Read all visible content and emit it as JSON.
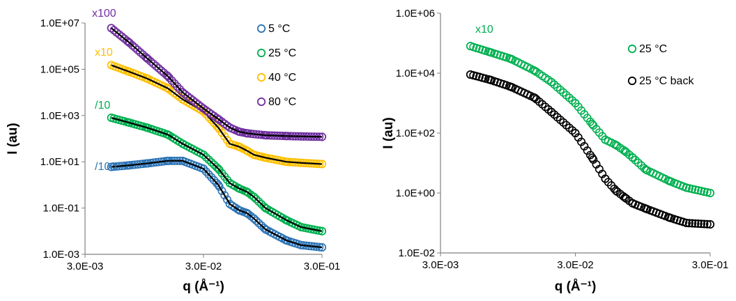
{
  "chart_data": [
    {
      "type": "scatter",
      "xlabel": "q (Å⁻¹)",
      "ylabel": "I (au)",
      "x_scale": "log",
      "y_scale": "log",
      "xlim": [
        0.003,
        0.3
      ],
      "ylim": [
        0.001,
        10000000
      ],
      "x_tick_labels": [
        "3.0E-03",
        "3.0E-02",
        "3.0E-01"
      ],
      "y_tick_labels": [
        "1.0E-03",
        "1.0E-01",
        "1.0E+01",
        "1.0E+03",
        "1.0E+05",
        "1.0E+07"
      ],
      "legend_position": "top-right",
      "series": [
        {
          "name": "5 °C",
          "color": "#2e75b6",
          "annotation": "/100",
          "x": [
            0.005,
            0.007,
            0.01,
            0.015,
            0.02,
            0.03,
            0.04,
            0.05,
            0.06,
            0.07,
            0.08,
            0.1,
            0.15,
            0.2,
            0.3
          ],
          "y": [
            6,
            7,
            8.5,
            11,
            11,
            5,
            1.0,
            0.15,
            0.08,
            0.06,
            0.035,
            0.012,
            0.004,
            0.0025,
            0.002
          ]
        },
        {
          "name": "25 °C",
          "color": "#00b050",
          "annotation": "/10",
          "x": [
            0.005,
            0.007,
            0.01,
            0.015,
            0.02,
            0.03,
            0.04,
            0.05,
            0.06,
            0.07,
            0.08,
            0.1,
            0.15,
            0.2,
            0.3
          ],
          "y": [
            800,
            500,
            300,
            150,
            60,
            20,
            5,
            1.2,
            0.7,
            0.5,
            0.3,
            0.1,
            0.03,
            0.015,
            0.01
          ]
        },
        {
          "name": "40 °C",
          "color": "#ffc000",
          "annotation": "x10",
          "x": [
            0.005,
            0.007,
            0.01,
            0.015,
            0.02,
            0.03,
            0.04,
            0.05,
            0.06,
            0.07,
            0.08,
            0.1,
            0.15,
            0.2,
            0.3
          ],
          "y": [
            150000,
            80000,
            40000,
            15000,
            5000,
            1500,
            300,
            60,
            45,
            30,
            20,
            15,
            10,
            9,
            8
          ]
        },
        {
          "name": "80 °C",
          "color": "#7030a0",
          "annotation": "x100",
          "x": [
            0.005,
            0.007,
            0.01,
            0.015,
            0.02,
            0.03,
            0.04,
            0.05,
            0.06,
            0.07,
            0.1,
            0.15,
            0.2,
            0.3
          ],
          "y": [
            6000000,
            1500000,
            300000,
            50000,
            10000,
            2000,
            700,
            300,
            200,
            170,
            140,
            130,
            125,
            120
          ]
        }
      ]
    },
    {
      "type": "scatter",
      "xlabel": "q (Å⁻¹)",
      "ylabel": "I (au)",
      "x_scale": "log",
      "y_scale": "log",
      "xlim": [
        0.003,
        0.3
      ],
      "ylim": [
        0.01,
        1000000
      ],
      "x_tick_labels": [
        "3.0E-03",
        "3.0E-02",
        "3.0E-01"
      ],
      "y_tick_labels": [
        "1.0E-02",
        "1.0E+00",
        "1.0E+02",
        "1.0E+04",
        "1.0E+06"
      ],
      "legend_position": "top-right",
      "series": [
        {
          "name": "25 °C",
          "color": "#00b050",
          "annotation": "x10",
          "x": [
            0.005,
            0.007,
            0.01,
            0.015,
            0.02,
            0.03,
            0.04,
            0.05,
            0.06,
            0.07,
            0.08,
            0.1,
            0.15,
            0.2,
            0.3
          ],
          "y": [
            80000,
            50000,
            30000,
            12000,
            5000,
            1000,
            200,
            60,
            40,
            25,
            15,
            6,
            2.5,
            1.5,
            1.0
          ]
        },
        {
          "name": "25 °C back",
          "color": "#000000",
          "annotation": "",
          "x": [
            0.005,
            0.007,
            0.01,
            0.015,
            0.02,
            0.03,
            0.04,
            0.05,
            0.06,
            0.07,
            0.08,
            0.1,
            0.15,
            0.2,
            0.3
          ],
          "y": [
            9000,
            6000,
            3500,
            1500,
            500,
            100,
            15,
            3,
            1.2,
            0.7,
            0.45,
            0.3,
            0.15,
            0.1,
            0.09
          ]
        }
      ]
    }
  ]
}
